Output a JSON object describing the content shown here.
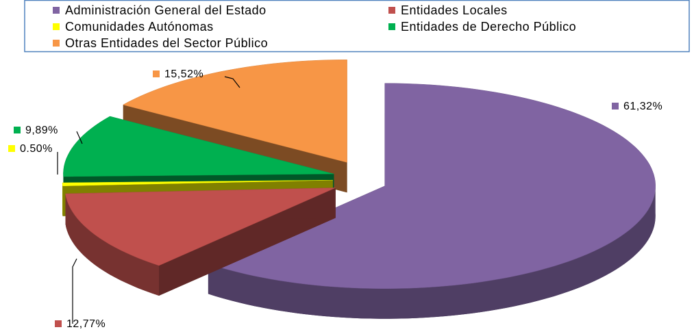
{
  "chart_data": {
    "type": "pie3d",
    "categories": [
      "Administración General del Estado",
      "Entidades Locales",
      "Comunidades Autónomas",
      "Entidades de Derecho Público",
      "Otras Entidades del Sector Público"
    ],
    "values": [
      61.32,
      12.77,
      0.5,
      9.89,
      15.52
    ],
    "value_labels": [
      "61,32%",
      "12,77%",
      "0.50%",
      "9,89%",
      "15,52%"
    ],
    "colors": [
      "#8064a2",
      "#c0504d",
      "#ffff00",
      "#00b050",
      "#f79646"
    ],
    "legend": "top"
  }
}
